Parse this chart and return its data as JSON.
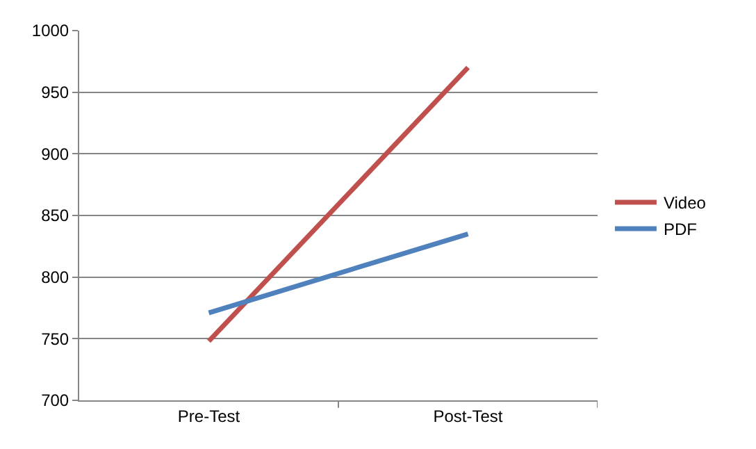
{
  "chart_data": {
    "type": "line",
    "categories": [
      "Pre-Test",
      "Post-Test"
    ],
    "series": [
      {
        "name": "Video",
        "color": "#c0504d",
        "values": [
          748,
          970
        ]
      },
      {
        "name": "PDF",
        "color": "#4f81bd",
        "values": [
          771,
          835
        ]
      }
    ],
    "ylim": [
      700,
      1000
    ],
    "yticks": [
      700,
      750,
      800,
      850,
      900,
      950,
      1000
    ],
    "grid": "y",
    "legend": "right",
    "marker": "none",
    "line_style": "solid"
  }
}
